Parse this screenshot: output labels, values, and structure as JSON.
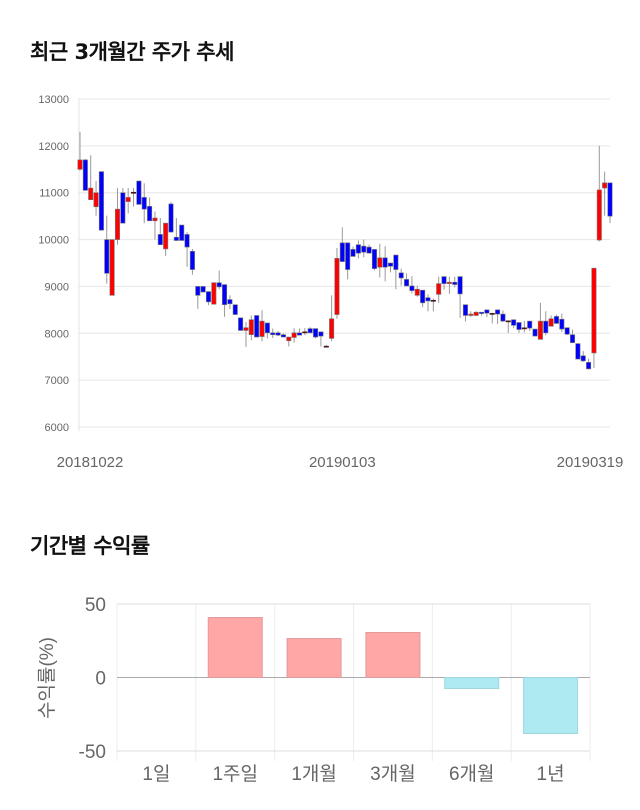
{
  "sections": {
    "price_title": "최근 3개월간 주가 추세",
    "return_title": "기간별 수익률"
  },
  "colors": {
    "up": "#ff0000",
    "down": "#0000ff",
    "positive_bar": "#ffa6a6",
    "negative_bar": "#aeeaf2"
  },
  "chart_data": [
    {
      "type": "candlestick",
      "title": "최근 3개월간 주가 추세",
      "ylim": [
        6000,
        13000
      ],
      "yticks": [
        "13000",
        "12000",
        "11000",
        "10000",
        "9000",
        "8000",
        "7000",
        "6000"
      ],
      "xtick_labels": [
        {
          "label": "20181022",
          "index": 1
        },
        {
          "label": "20190103",
          "index": 49
        },
        {
          "label": "20190319",
          "index": 96
        }
      ],
      "grid": true,
      "fields": [
        "open",
        "high",
        "low",
        "close"
      ],
      "candles": [
        [
          11500,
          12300,
          11470,
          11700
        ],
        [
          11700,
          11720,
          11050,
          11050
        ],
        [
          10850,
          11800,
          10850,
          11100
        ],
        [
          10700,
          11250,
          10510,
          11000
        ],
        [
          11450,
          11450,
          10200,
          10200
        ],
        [
          10000,
          10510,
          9060,
          9280
        ],
        [
          8810,
          10000,
          8810,
          10000
        ],
        [
          10000,
          11100,
          9890,
          10650
        ],
        [
          11000,
          11100,
          10350,
          10350
        ],
        [
          10810,
          11100,
          10560,
          10900
        ],
        [
          11000,
          11100,
          10700,
          11010
        ],
        [
          11250,
          11250,
          10750,
          10750
        ],
        [
          10900,
          11200,
          10350,
          10650
        ],
        [
          10710,
          10900,
          10400,
          10400
        ],
        [
          10400,
          10600,
          10000,
          10460
        ],
        [
          10110,
          10460,
          9890,
          9890
        ],
        [
          9800,
          10350,
          9650,
          10350
        ],
        [
          10760,
          10800,
          10160,
          10160
        ],
        [
          10050,
          10460,
          9970,
          9980
        ],
        [
          10310,
          10310,
          9980,
          9980
        ],
        [
          10110,
          10160,
          9420,
          9840
        ],
        [
          9750,
          9800,
          9250,
          9360
        ],
        [
          9000,
          9000,
          8520,
          8810
        ],
        [
          9000,
          9000,
          8880,
          8880
        ],
        [
          8890,
          8890,
          8600,
          8670
        ],
        [
          8620,
          9080,
          8620,
          9080
        ],
        [
          9080,
          9340,
          8940,
          8990
        ],
        [
          9040,
          9040,
          8350,
          8610
        ],
        [
          8720,
          8810,
          8520,
          8630
        ],
        [
          8610,
          8610,
          8400,
          8400
        ],
        [
          8330,
          8330,
          8060,
          8060
        ],
        [
          8060,
          8240,
          7710,
          8120
        ],
        [
          7970,
          8380,
          7850,
          8290
        ],
        [
          8380,
          8380,
          7920,
          7920
        ],
        [
          7930,
          8490,
          7830,
          8260
        ],
        [
          8220,
          8220,
          7890,
          8010
        ],
        [
          8010,
          8100,
          7900,
          7970
        ],
        [
          8010,
          8050,
          7940,
          7960
        ],
        [
          7970,
          8000,
          7920,
          7920
        ],
        [
          7840,
          7920,
          7720,
          7920
        ],
        [
          7910,
          8110,
          7800,
          8010
        ],
        [
          8010,
          8100,
          7960,
          7960
        ],
        [
          8010,
          8110,
          7960,
          8030
        ],
        [
          8100,
          8130,
          8010,
          8010
        ],
        [
          8100,
          8100,
          7890,
          7920
        ],
        [
          8030,
          8030,
          7720,
          7940
        ],
        [
          7720,
          7750,
          7700,
          7725
        ],
        [
          7890,
          8810,
          7830,
          8310
        ],
        [
          8400,
          9820,
          8310,
          9600
        ],
        [
          9930,
          10260,
          9530,
          9530
        ],
        [
          9930,
          9930,
          9150,
          9360
        ],
        [
          9790,
          9850,
          9640,
          9640
        ],
        [
          9890,
          9980,
          9600,
          9710
        ],
        [
          9860,
          10000,
          9620,
          9730
        ],
        [
          9840,
          9890,
          9700,
          9710
        ],
        [
          9790,
          9790,
          9340,
          9380
        ],
        [
          9410,
          9910,
          9190,
          9610
        ],
        [
          9610,
          9860,
          9110,
          9410
        ],
        [
          9500,
          9500,
          9300,
          9430
        ],
        [
          9670,
          9670,
          8940,
          9360
        ],
        [
          9290,
          9380,
          9020,
          9180
        ],
        [
          9150,
          9280,
          9000,
          9010
        ],
        [
          9010,
          9220,
          8850,
          8910
        ],
        [
          8810,
          9020,
          8780,
          8940
        ],
        [
          8920,
          8920,
          8560,
          8650
        ],
        [
          8760,
          8830,
          8470,
          8690
        ],
        [
          8700,
          8740,
          8470,
          8705
        ],
        [
          8830,
          9210,
          8650,
          9060
        ],
        [
          9210,
          9210,
          8930,
          9060
        ],
        [
          9060,
          9210,
          8840,
          9090
        ],
        [
          9090,
          9210,
          8980,
          9040
        ],
        [
          9210,
          9210,
          8330,
          8840
        ],
        [
          8610,
          8610,
          8250,
          8380
        ],
        [
          8380,
          8470,
          8350,
          8410
        ],
        [
          8380,
          8470,
          8370,
          8450
        ],
        [
          8450,
          8450,
          8380,
          8420
        ],
        [
          8500,
          8500,
          8350,
          8430
        ],
        [
          8420,
          8440,
          8210,
          8425
        ],
        [
          8500,
          8500,
          8200,
          8410
        ],
        [
          8410,
          8490,
          8240,
          8260
        ],
        [
          8260,
          8270,
          8010,
          8265
        ],
        [
          8290,
          8290,
          8110,
          8170
        ],
        [
          8230,
          8230,
          8010,
          8080
        ],
        [
          8110,
          8260,
          8020,
          8115
        ],
        [
          8260,
          8260,
          8050,
          8110
        ],
        [
          8090,
          8090,
          7940,
          7940
        ],
        [
          7870,
          8650,
          7870,
          8260
        ],
        [
          8260,
          8470,
          7960,
          8010
        ],
        [
          8150,
          8380,
          8150,
          8310
        ],
        [
          8360,
          8400,
          8200,
          8210
        ],
        [
          8300,
          8420,
          8030,
          8090
        ],
        [
          8120,
          8120,
          7960,
          7980
        ],
        [
          7970,
          8080,
          7800,
          7800
        ],
        [
          7780,
          7780,
          7450,
          7450
        ],
        [
          7520,
          7620,
          7390,
          7410
        ],
        [
          7380,
          7460,
          7230,
          7240
        ],
        [
          7580,
          9390,
          7260,
          9390
        ],
        [
          9990,
          12000,
          9960,
          11060
        ],
        [
          11100,
          11450,
          10510,
          11210
        ],
        [
          11210,
          11210,
          10350,
          10500
        ]
      ]
    },
    {
      "type": "bar",
      "title": "기간별 수익률",
      "ylabel": "수익률(%)",
      "ylim": [
        -50,
        50
      ],
      "yticks": [
        "50",
        "0",
        "-50"
      ],
      "categories": [
        "1일",
        "1주일",
        "1개월",
        "3개월",
        "6개월",
        "1년"
      ],
      "values": [
        0,
        40.8,
        26.5,
        30.6,
        -7.5,
        -38.1
      ],
      "grid": true
    }
  ]
}
